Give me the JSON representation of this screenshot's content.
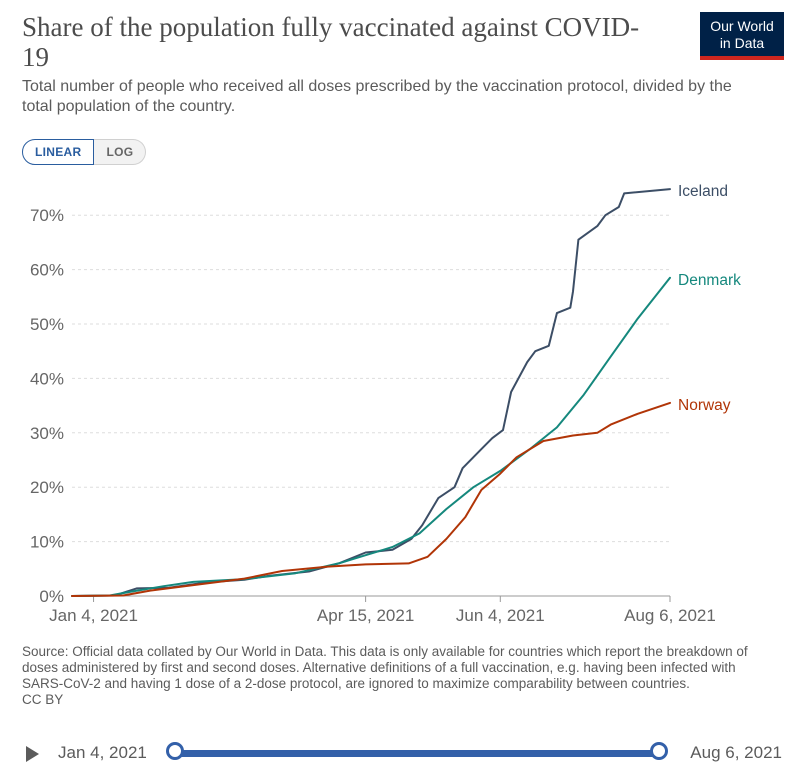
{
  "header": {
    "title": "Share of the population fully vaccinated against COVID-19",
    "subtitle": "Total number of people who received all doses prescribed by the vaccination protocol, divided by the total population of the country.",
    "logo_line1": "Our World",
    "logo_line2": "in Data"
  },
  "toggle": {
    "linear_label": "LINEAR",
    "log_label": "LOG"
  },
  "footer": {
    "source": "Source: Official data collated by Our World in Data. This data is only available for countries which report the breakdown of doses administered by first and second doses. Alternative definitions of a full vaccination, e.g. having been infected with SARS-CoV-2 and having 1 dose of a 2-dose protocol, are ignored to maximize comparability between countries.",
    "license": "CC BY"
  },
  "timeline": {
    "start_label": "Jan 4, 2021",
    "end_label": "Aug 6, 2021"
  },
  "chart_data": {
    "type": "line",
    "title": "Share of the population fully vaccinated against COVID-19",
    "xlabel": "",
    "ylabel": "",
    "x_domain": [
      "2020-12-27",
      "2021-08-06"
    ],
    "ylim": [
      0,
      75
    ],
    "y_ticks": [
      0,
      10,
      20,
      30,
      40,
      50,
      60,
      70
    ],
    "y_tick_labels": [
      "0%",
      "10%",
      "20%",
      "30%",
      "40%",
      "50%",
      "60%",
      "70%"
    ],
    "x_ticks": [
      "2021-01-04",
      "2021-04-15",
      "2021-06-04",
      "2021-08-06"
    ],
    "x_tick_labels": [
      "Jan 4, 2021",
      "Apr 15, 2021",
      "Jun 4, 2021",
      "Aug 6, 2021"
    ],
    "grid": "horizontal-dashed",
    "legend": "line-end labels",
    "series": [
      {
        "name": "Iceland",
        "color": "#3c4e66",
        "points": [
          [
            "2020-12-27",
            0
          ],
          [
            "2021-01-12",
            0.1
          ],
          [
            "2021-01-20",
            1.4
          ],
          [
            "2021-02-01",
            1.5
          ],
          [
            "2021-02-15",
            2.5
          ],
          [
            "2021-03-01",
            3.0
          ],
          [
            "2021-03-10",
            3.7
          ],
          [
            "2021-03-25",
            4.5
          ],
          [
            "2021-04-05",
            6.0
          ],
          [
            "2021-04-15",
            8.0
          ],
          [
            "2021-04-25",
            8.5
          ],
          [
            "2021-05-02",
            10.5
          ],
          [
            "2021-05-06",
            13.0
          ],
          [
            "2021-05-12",
            18.0
          ],
          [
            "2021-05-18",
            20.0
          ],
          [
            "2021-05-21",
            23.5
          ],
          [
            "2021-05-28",
            27.0
          ],
          [
            "2021-06-01",
            29.0
          ],
          [
            "2021-06-05",
            30.5
          ],
          [
            "2021-06-08",
            37.5
          ],
          [
            "2021-06-14",
            43.0
          ],
          [
            "2021-06-17",
            45.0
          ],
          [
            "2021-06-22",
            46.0
          ],
          [
            "2021-06-25",
            52.0
          ],
          [
            "2021-06-30",
            53.0
          ],
          [
            "2021-07-01",
            56.0
          ],
          [
            "2021-07-03",
            65.5
          ],
          [
            "2021-07-10",
            68.0
          ],
          [
            "2021-07-13",
            70.0
          ],
          [
            "2021-07-18",
            71.5
          ],
          [
            "2021-07-20",
            74.0
          ],
          [
            "2021-08-06",
            74.8
          ]
        ]
      },
      {
        "name": "Denmark",
        "color": "#15887d",
        "points": [
          [
            "2020-12-27",
            0
          ],
          [
            "2021-01-10",
            0.1
          ],
          [
            "2021-01-18",
            0.8
          ],
          [
            "2021-01-30",
            1.8
          ],
          [
            "2021-02-10",
            2.6
          ],
          [
            "2021-03-01",
            3.1
          ],
          [
            "2021-03-20",
            4.2
          ],
          [
            "2021-04-05",
            6.0
          ],
          [
            "2021-04-15",
            7.5
          ],
          [
            "2021-04-25",
            9.0
          ],
          [
            "2021-05-05",
            11.5
          ],
          [
            "2021-05-15",
            16.0
          ],
          [
            "2021-05-25",
            20.0
          ],
          [
            "2021-06-04",
            23.0
          ],
          [
            "2021-06-15",
            27.0
          ],
          [
            "2021-06-25",
            31.0
          ],
          [
            "2021-07-05",
            37.0
          ],
          [
            "2021-07-15",
            44.0
          ],
          [
            "2021-07-25",
            51.0
          ],
          [
            "2021-08-06",
            58.5
          ]
        ]
      },
      {
        "name": "Norway",
        "color": "#b13507",
        "points": [
          [
            "2020-12-27",
            0
          ],
          [
            "2021-01-15",
            0.1
          ],
          [
            "2021-01-25",
            1.0
          ],
          [
            "2021-02-10",
            2.0
          ],
          [
            "2021-03-01",
            3.2
          ],
          [
            "2021-03-15",
            4.6
          ],
          [
            "2021-04-01",
            5.4
          ],
          [
            "2021-04-15",
            5.8
          ],
          [
            "2021-05-01",
            6.0
          ],
          [
            "2021-05-08",
            7.2
          ],
          [
            "2021-05-15",
            10.5
          ],
          [
            "2021-05-22",
            14.5
          ],
          [
            "2021-05-28",
            19.5
          ],
          [
            "2021-06-04",
            22.5
          ],
          [
            "2021-06-10",
            25.5
          ],
          [
            "2021-06-20",
            28.5
          ],
          [
            "2021-07-01",
            29.5
          ],
          [
            "2021-07-10",
            30.0
          ],
          [
            "2021-07-15",
            31.5
          ],
          [
            "2021-07-25",
            33.5
          ],
          [
            "2021-08-06",
            35.5
          ]
        ]
      }
    ]
  }
}
